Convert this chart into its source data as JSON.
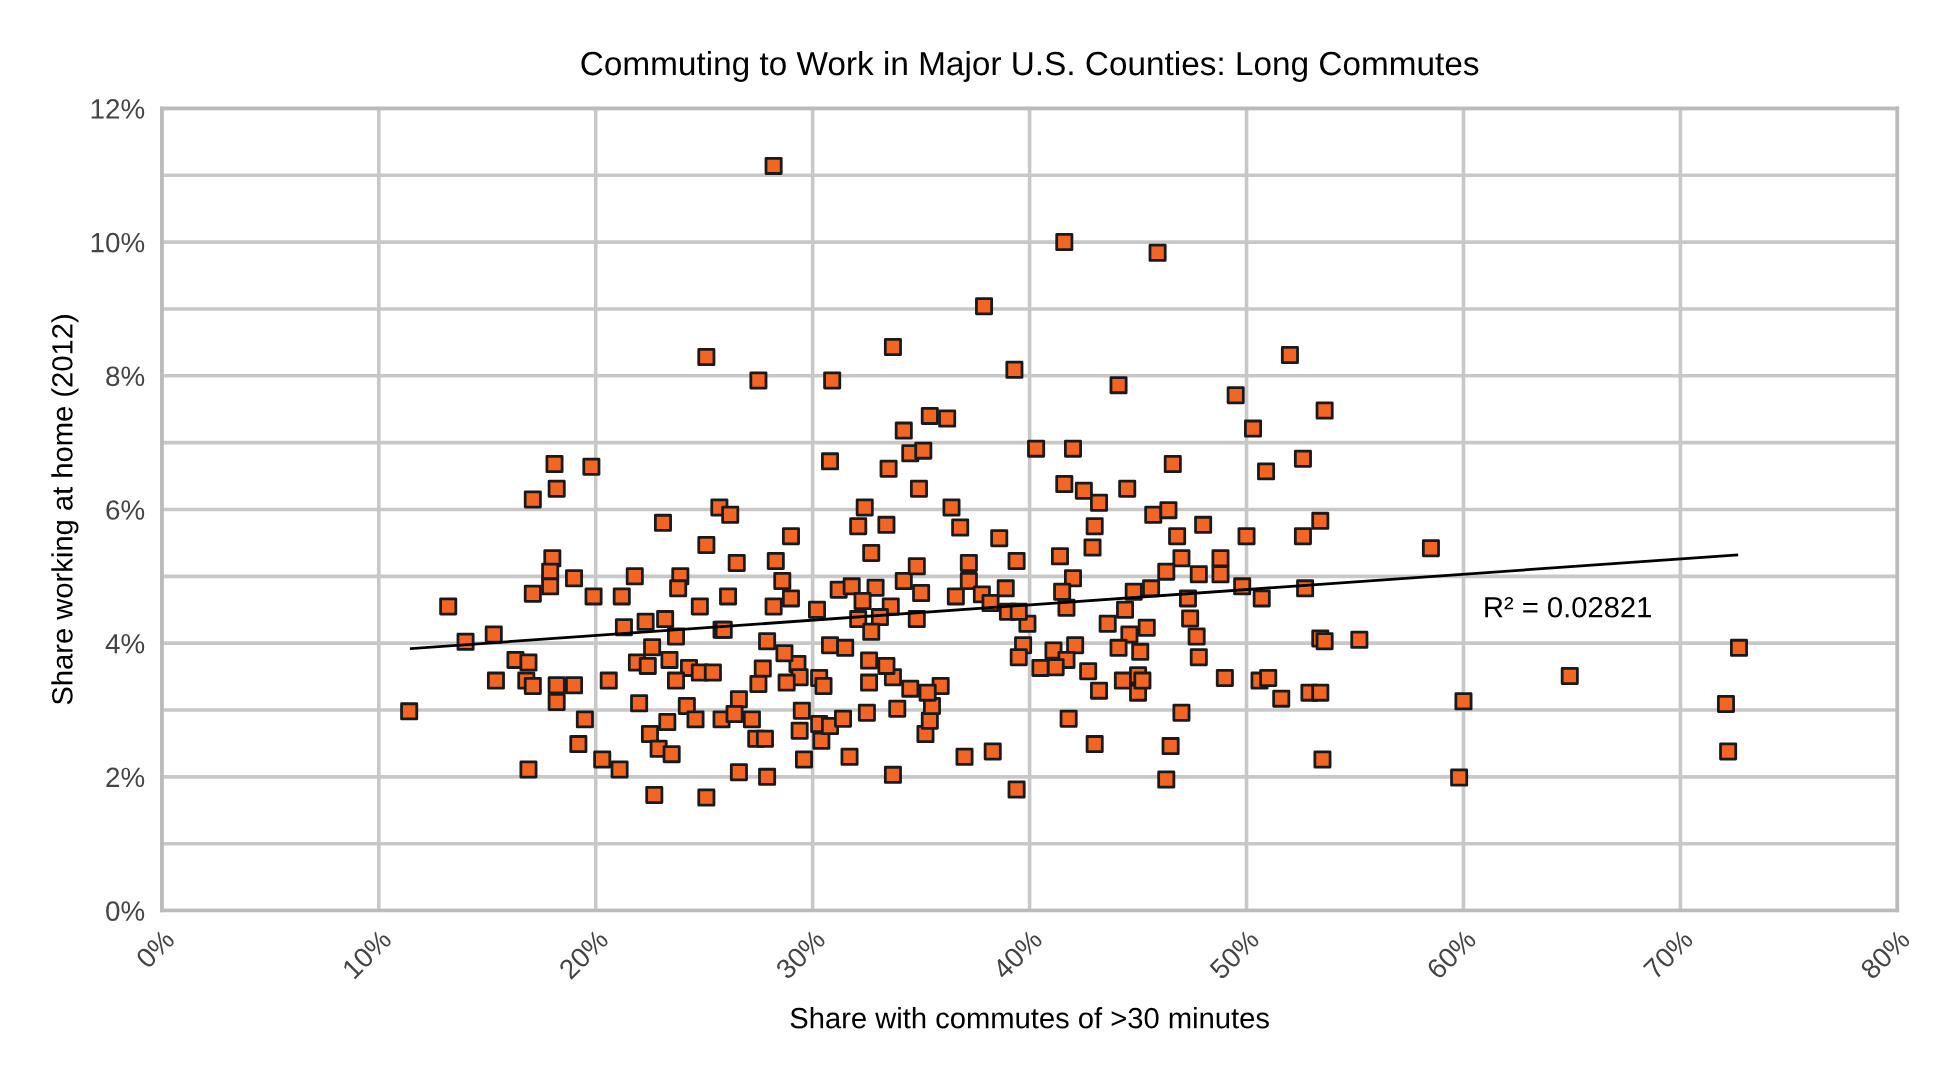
{
  "chart_data": {
    "type": "scatter",
    "title": "Commuting to Work in Major U.S. Counties: Long Commutes",
    "xlabel": "Share with commutes of >30 minutes",
    "ylabel": "Share working at home (2012)",
    "annotations": [
      "R² = 0.02821"
    ],
    "xlim": [
      0,
      80
    ],
    "ylim": [
      0,
      12
    ],
    "xticks": [
      {
        "value": 0,
        "label": "0%"
      },
      {
        "value": 10,
        "label": "10%"
      },
      {
        "value": 20,
        "label": "20%"
      },
      {
        "value": 30,
        "label": "30%"
      },
      {
        "value": 40,
        "label": "40%"
      },
      {
        "value": 50,
        "label": "50%"
      },
      {
        "value": 60,
        "label": "60%"
      },
      {
        "value": 70,
        "label": "70%"
      },
      {
        "value": 80,
        "label": "80%"
      }
    ],
    "yticks": [
      {
        "value": 0,
        "label": "0%"
      },
      {
        "value": 1,
        "label": null
      },
      {
        "value": 2,
        "label": "2%"
      },
      {
        "value": 3,
        "label": null
      },
      {
        "value": 4,
        "label": "4%"
      },
      {
        "value": 5,
        "label": null
      },
      {
        "value": 6,
        "label": "6%"
      },
      {
        "value": 7,
        "label": null
      },
      {
        "value": 8,
        "label": "8%"
      },
      {
        "value": 9,
        "label": null
      },
      {
        "value": 10,
        "label": "10%"
      },
      {
        "value": 11,
        "label": null
      },
      {
        "value": 12,
        "label": "12%"
      }
    ],
    "grid": true,
    "marker": "square",
    "series": [
      {
        "color": "#f26522",
        "x": [
          11.4,
          13.2,
          14.0,
          15.3,
          15.4,
          16.3,
          16.9,
          16.8,
          17.1,
          16.9,
          17.1,
          18.1,
          18.2,
          19.8,
          18.0,
          17.9,
          17.9,
          17.1,
          19.0,
          19.9,
          18.2,
          18.2,
          19.0,
          19.5,
          19.2,
          20.3,
          21.1,
          20.6,
          21.2,
          21.3,
          21.8,
          22.3,
          23.1,
          23.2,
          23.9,
          23.8,
          23.7,
          22.6,
          21.9,
          22.4,
          22.0,
          23.3,
          22.5,
          22.9,
          23.5,
          22.7,
          25.1,
          25.1,
          24.8,
          25.1,
          25.7,
          23.4,
          24.3,
          24.8,
          25.4,
          23.7,
          24.2,
          24.6,
          25.8,
          25.8,
          28.2,
          27.5,
          30.9,
          30.8,
          33.7,
          37.9,
          39.3,
          41.6,
          45.9,
          44.1,
          52.0,
          49.5,
          50.3,
          50.9,
          52.6,
          34.2,
          35.4,
          36.2,
          34.5,
          35.1,
          33.5,
          34.9,
          40.3,
          42.0,
          41.6,
          42.5,
          43.2,
          44.5,
          46.6,
          32.4,
          33.4,
          32.1,
          36.4,
          36.8,
          29.0,
          32.7,
          28.3,
          26.5,
          37.2,
          38.6,
          39.4,
          41.4,
          42.9,
          43.0,
          45.7,
          46.4,
          46.8,
          48.0,
          50.0,
          52.6,
          53.4,
          47.0,
          48.8,
          46.3,
          47.8,
          48.8,
          42.0,
          26.1,
          28.6,
          29.0,
          28.2,
          30.2,
          31.2,
          31.8,
          32.9,
          34.2,
          34.8,
          35.0,
          32.3,
          33.6,
          33.1,
          32.1,
          34.8,
          32.7,
          36.6,
          37.2,
          37.8,
          38.2,
          38.9,
          39.0,
          39.9,
          39.5,
          41.5,
          41.7,
          44.4,
          44.8,
          45.6,
          47.3,
          49.8,
          50.7,
          52.7,
          43.6,
          45.4,
          47.4,
          47.7,
          47.8,
          44.6,
          44.1,
          45.1,
          42.1,
          41.1,
          39.7,
          39.5,
          41.7,
          41.2,
          40.5,
          42.7,
          43.2,
          44.3,
          45.0,
          45.0,
          45.2,
          49.0,
          50.6,
          51.0,
          51.6,
          52.9,
          53.4,
          53.4,
          47.0,
          41.8,
          43.0,
          46.5,
          46.3,
          39.4,
          38.3,
          37.0,
          33.7,
          31.7,
          29.6,
          27.9,
          26.6,
          27.4,
          27.8,
          30.4,
          29.4,
          30.3,
          30.8,
          31.4,
          32.5,
          33.9,
          35.2,
          35.4,
          35.5,
          35.9,
          35.3,
          34.5,
          33.7,
          32.6,
          32.6,
          33.4,
          30.8,
          31.5,
          29.3,
          28.7,
          27.9,
          29.4,
          28.8,
          27.7,
          27.5,
          26.6,
          26.4,
          27.2,
          29.5,
          30.3,
          30.5,
          25.9,
          26.2,
          53.6,
          58.5,
          53.6,
          55.2,
          53.5,
          60.0,
          59.8,
          64.9,
          72.7,
          72.1,
          72.2
        ],
        "values": [
          2.98,
          4.55,
          4.02,
          4.13,
          3.44,
          3.75,
          3.71,
          3.44,
          3.36,
          2.11,
          6.15,
          6.68,
          6.31,
          6.64,
          5.27,
          5.07,
          4.85,
          4.74,
          4.97,
          4.7,
          3.37,
          3.12,
          3.37,
          2.86,
          2.49,
          2.26,
          2.11,
          3.44,
          4.7,
          4.24,
          5.0,
          4.32,
          5.8,
          4.36,
          5.0,
          4.82,
          4.1,
          3.94,
          3.71,
          3.66,
          3.1,
          2.82,
          2.64,
          2.42,
          2.34,
          1.73,
          1.69,
          8.28,
          4.55,
          5.47,
          6.03,
          3.75,
          3.63,
          3.56,
          3.56,
          3.44,
          3.06,
          2.86,
          2.86,
          4.2,
          11.14,
          7.93,
          7.93,
          6.72,
          8.43,
          9.04,
          8.09,
          10.0,
          9.84,
          7.86,
          8.31,
          7.71,
          7.21,
          6.57,
          6.76,
          7.18,
          7.4,
          7.36,
          6.84,
          6.88,
          6.61,
          6.31,
          6.91,
          6.91,
          6.38,
          6.28,
          6.1,
          6.31,
          6.68,
          6.03,
          5.77,
          5.75,
          6.03,
          5.73,
          5.6,
          5.35,
          5.23,
          5.2,
          5.2,
          5.57,
          5.23,
          5.3,
          5.43,
          5.75,
          5.92,
          5.99,
          5.6,
          5.77,
          5.6,
          5.6,
          5.83,
          5.27,
          5.27,
          5.07,
          5.03,
          5.03,
          4.97,
          4.7,
          4.93,
          4.67,
          4.55,
          4.5,
          4.8,
          4.85,
          4.83,
          4.93,
          5.15,
          4.75,
          4.63,
          4.55,
          4.39,
          4.36,
          4.36,
          4.17,
          4.7,
          4.93,
          4.73,
          4.6,
          4.82,
          4.47,
          4.29,
          4.47,
          4.77,
          4.53,
          4.5,
          4.77,
          4.82,
          4.67,
          4.85,
          4.67,
          4.82,
          4.29,
          4.23,
          4.37,
          4.1,
          3.79,
          4.13,
          3.93,
          3.87,
          3.97,
          3.89,
          3.97,
          3.79,
          3.75,
          3.64,
          3.63,
          3.58,
          3.29,
          3.44,
          3.52,
          3.26,
          3.44,
          3.48,
          3.44,
          3.48,
          3.17,
          3.26,
          3.26,
          4.07,
          2.96,
          2.87,
          2.49,
          2.46,
          1.96,
          1.81,
          2.38,
          2.3,
          2.03,
          2.3,
          2.26,
          2.0,
          2.07,
          2.57,
          2.57,
          2.54,
          2.69,
          2.79,
          2.76,
          2.87,
          2.96,
          3.02,
          2.64,
          2.84,
          3.06,
          3.36,
          3.26,
          3.32,
          3.49,
          3.41,
          3.74,
          3.66,
          3.97,
          3.93,
          3.69,
          3.85,
          4.03,
          3.49,
          3.41,
          3.62,
          3.39,
          3.16,
          2.94,
          2.86,
          2.99,
          3.48,
          3.36,
          4.2,
          5.92,
          7.48,
          5.42,
          4.03,
          4.05,
          2.26,
          3.13,
          1.99,
          3.51,
          3.93,
          3.09,
          2.38
        ]
      },
      {
        "type": "line",
        "color": "#000000",
        "marker": "none",
        "line_style": "solid",
        "x": [
          11.5,
          72.6
        ],
        "values": [
          3.92,
          5.32
        ]
      }
    ]
  }
}
